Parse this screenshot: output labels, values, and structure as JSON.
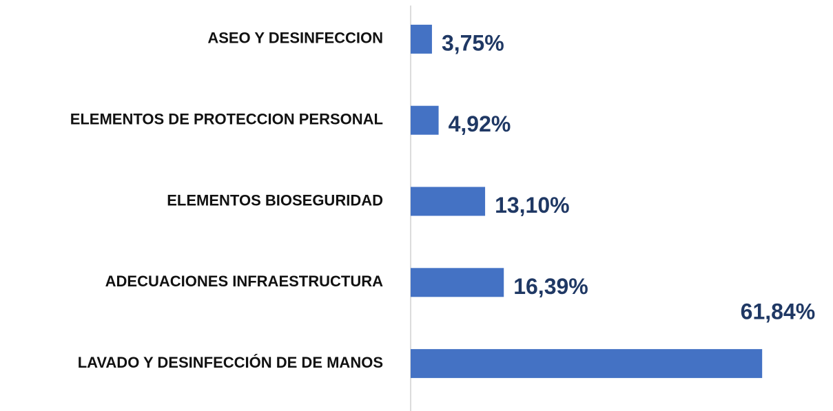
{
  "chart_data": {
    "type": "barh",
    "categories": [
      "ASEO Y DESINFECCION",
      "ELEMENTOS DE PROTECCION PERSONAL",
      "ELEMENTOS BIOSEGURIDAD",
      "ADECUACIONES INFRAESTRUCTURA",
      "LAVADO Y DESINFECCIÓN DE DE MANOS"
    ],
    "values": [
      3.75,
      4.92,
      13.1,
      16.39,
      61.84
    ],
    "value_labels": [
      "3,75%",
      "4,92%",
      "13,10%",
      "16,39%",
      "61,84%"
    ],
    "color": "#4472c4"
  }
}
